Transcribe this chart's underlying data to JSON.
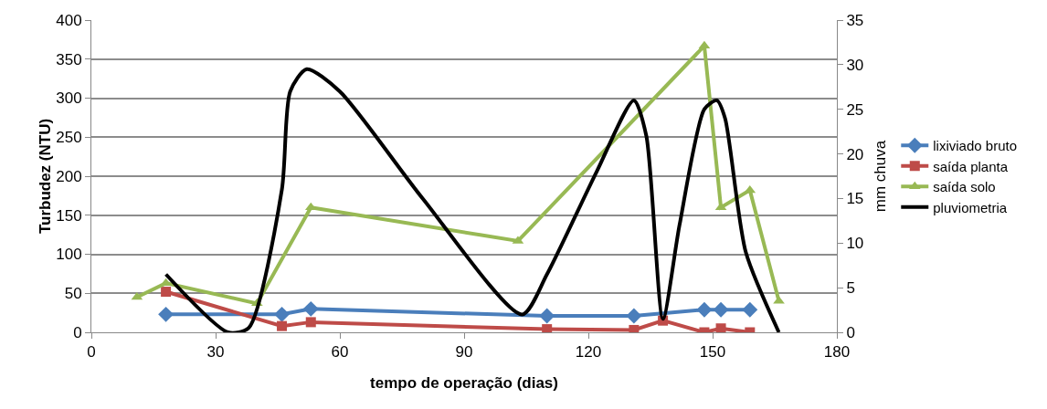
{
  "chart_data": {
    "type": "line",
    "xlabel": "tempo de operação (dias)",
    "ylabel": "Turbudez (NTU)",
    "y2label": "mm chuva",
    "xlim": [
      0,
      180
    ],
    "xticks": [
      0,
      30,
      60,
      90,
      120,
      150,
      180
    ],
    "ylim": [
      0,
      400
    ],
    "yticks": [
      0,
      50,
      100,
      150,
      200,
      250,
      300,
      350,
      400
    ],
    "y2lim": [
      0,
      35
    ],
    "y2ticks": [
      0,
      5,
      10,
      15,
      20,
      25,
      30,
      35
    ],
    "grid": "y",
    "legend": "right",
    "series": [
      {
        "name": "lixiviado bruto",
        "color": "#4a7ebb",
        "marker": "diamond",
        "x": [
          18,
          46,
          53,
          110,
          131,
          148,
          152,
          159
        ],
        "values": [
          23,
          23,
          30,
          21,
          21,
          29,
          29,
          29
        ]
      },
      {
        "name": "saída planta",
        "color": "#be4b48",
        "marker": "square",
        "x": [
          18,
          46,
          53,
          110,
          131,
          138,
          148,
          152,
          159
        ],
        "values": [
          52,
          8,
          13,
          4,
          3,
          15,
          0,
          5,
          0
        ]
      },
      {
        "name": "saída solo",
        "color": "#98b954",
        "marker": "triangle",
        "x": [
          11,
          18,
          40,
          53,
          103,
          148,
          152,
          159,
          166
        ],
        "values": [
          45,
          63,
          37,
          160,
          117,
          367,
          160,
          182,
          40
        ]
      },
      {
        "name": "pluviometria",
        "color": "#000000",
        "marker": "none",
        "axis": "y2",
        "x": [
          18,
          33,
          38,
          46,
          48,
          52,
          60,
          80,
          104,
          110,
          122,
          131,
          134,
          138,
          142,
          148,
          151,
          153,
          158,
          166
        ],
        "values": [
          6.5,
          0,
          0.5,
          16,
          27,
          29.5,
          27,
          15,
          2,
          6.5,
          18,
          26,
          22,
          1.5,
          12,
          25,
          26,
          24,
          9,
          0
        ]
      }
    ]
  }
}
